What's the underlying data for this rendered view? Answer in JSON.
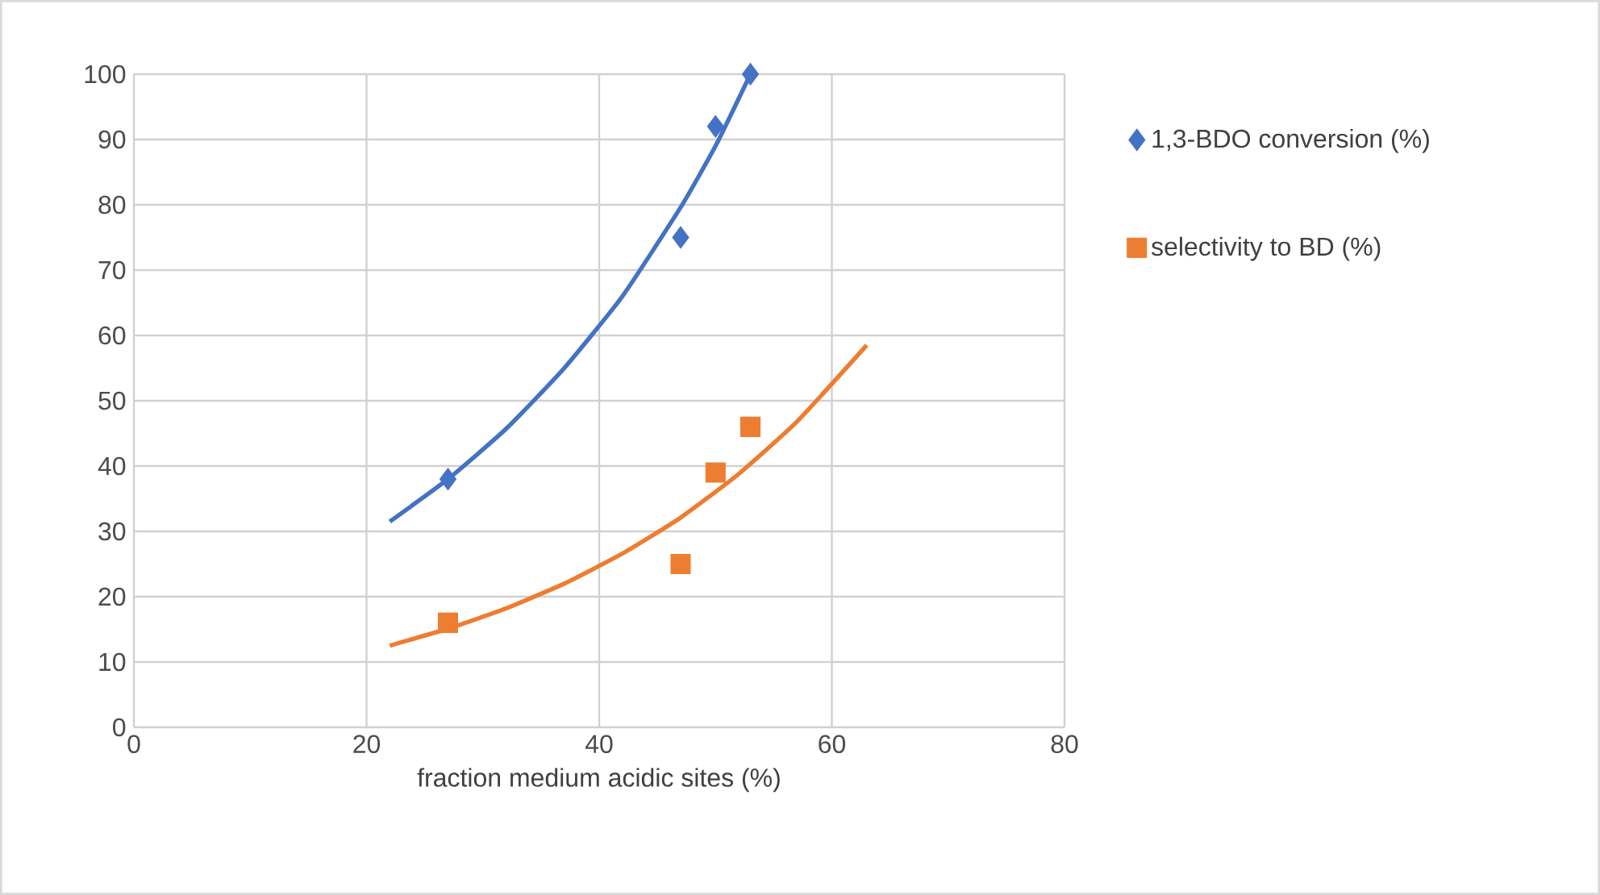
{
  "chart_data": {
    "type": "scatter",
    "xlabel": "fraction medium acidic sites (%)",
    "xlim": [
      0,
      80
    ],
    "xticks": [
      0,
      20,
      40,
      60,
      80
    ],
    "ylim": [
      0,
      100
    ],
    "yticks": [
      0,
      10,
      20,
      30,
      40,
      50,
      60,
      70,
      80,
      90,
      100
    ],
    "grid": true,
    "legend": "right",
    "series": [
      {
        "name": "1,3-BDO conversion (%)",
        "color": "#4472c4",
        "marker": "diamond",
        "x": [
          27,
          47,
          50,
          53
        ],
        "values": [
          38,
          75,
          92,
          100
        ]
      },
      {
        "name": "selectivity to BD (%)",
        "color": "#ed7d31",
        "marker": "square",
        "x": [
          27,
          47,
          50,
          53
        ],
        "values": [
          16,
          25,
          39,
          46
        ]
      },
      {
        "type": "line",
        "color": "#4472c4",
        "marker": "none",
        "x": [
          22,
          27,
          32,
          37,
          42,
          47,
          50,
          53
        ],
        "values": [
          31.5,
          38,
          45.7,
          55,
          66,
          79.6,
          89,
          100
        ]
      },
      {
        "type": "line",
        "color": "#ed7d31",
        "marker": "none",
        "x": [
          22,
          27,
          32,
          37,
          42,
          47,
          52,
          57,
          63
        ],
        "values": [
          12.5,
          15.1,
          18.2,
          22,
          26.6,
          32.1,
          38.8,
          46.8,
          58.5
        ]
      }
    ]
  }
}
